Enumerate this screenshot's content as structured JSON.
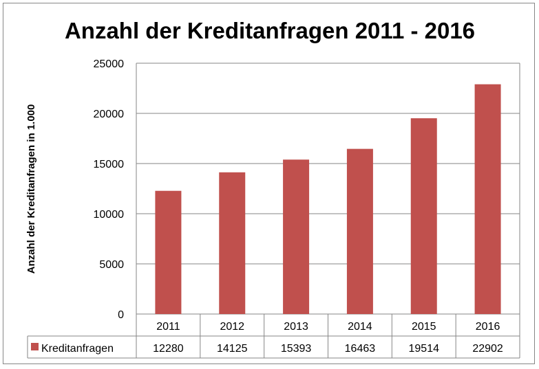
{
  "chart_data": {
    "type": "bar",
    "title": "Anzahl der Kreditanfragen 2011 - 2016",
    "ylabel": "Anzahl der Kreditanfragen in 1.000",
    "xlabel": "",
    "categories": [
      "2011",
      "2012",
      "2013",
      "2014",
      "2015",
      "2016"
    ],
    "series": [
      {
        "name": "Kreditanfragen",
        "values": [
          12280,
          14125,
          15393,
          16463,
          19514,
          22902
        ],
        "color": "#C0504D"
      }
    ],
    "ylim": [
      0,
      25000
    ],
    "yticks": [
      "0",
      "5000",
      "10000",
      "15000",
      "20000",
      "25000"
    ],
    "grid": true,
    "legend": "data-table",
    "data_table": true
  }
}
